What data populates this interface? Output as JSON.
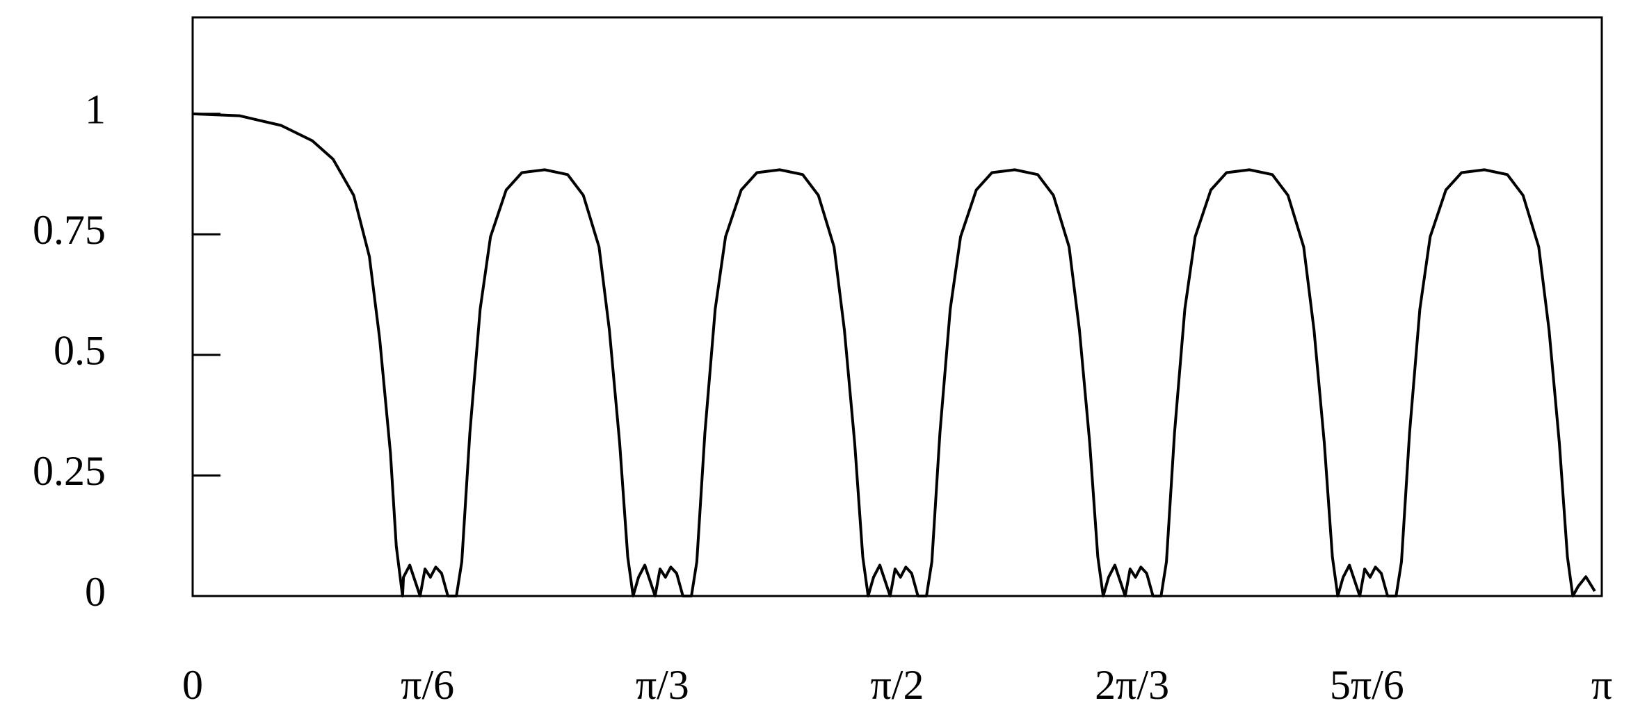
{
  "chart_data": {
    "type": "line",
    "color": "#000000",
    "xlim": [
      0,
      3.1416
    ],
    "ylim": [
      0,
      1.2
    ],
    "xticks": [
      0,
      {
        "value": 0.5236,
        "label": "π/6"
      },
      {
        "value": 1.0472,
        "label": "π/3"
      },
      {
        "value": 1.5708,
        "label": "π/2"
      },
      {
        "value": 2.0944,
        "label": "2π/3"
      },
      {
        "value": 2.618,
        "label": "5π/6"
      },
      {
        "value": 3.1416,
        "label": "π"
      }
    ],
    "yticks": [
      0,
      0.25,
      0.5,
      0.75,
      1
    ],
    "x": [
      0,
      0.104,
      0.197,
      0.267,
      0.313,
      0.359,
      0.394,
      0.417,
      0.441,
      0.454,
      0.468,
      0.47,
      0.484,
      0.497,
      0.507,
      0.518,
      0.53,
      0.542,
      0.555,
      0.569,
      0.588,
      0.6,
      0.618,
      0.641,
      0.664,
      0.699,
      0.734,
      0.785,
      0.836,
      0.871,
      0.906,
      0.929,
      0.952,
      0.97,
      0.982,
      0.994,
      1.008,
      1.021,
      1.031,
      1.042,
      1.054,
      1.066,
      1.079,
      1.093,
      1.112,
      1.124,
      1.142,
      1.165,
      1.188,
      1.223,
      1.258,
      1.309,
      1.36,
      1.395,
      1.43,
      1.453,
      1.476,
      1.494,
      1.506,
      1.518,
      1.532,
      1.545,
      1.555,
      1.566,
      1.578,
      1.59,
      1.603,
      1.617,
      1.636,
      1.648,
      1.666,
      1.689,
      1.712,
      1.747,
      1.782,
      1.833,
      1.884,
      1.919,
      1.954,
      1.977,
      2.0,
      2.018,
      2.03,
      2.042,
      2.056,
      2.069,
      2.079,
      2.09,
      2.102,
      2.114,
      2.127,
      2.141,
      2.159,
      2.171,
      2.189,
      2.212,
      2.235,
      2.27,
      2.305,
      2.356,
      2.407,
      2.442,
      2.477,
      2.5,
      2.523,
      2.541,
      2.553,
      2.565,
      2.579,
      2.592,
      2.602,
      2.613,
      2.625,
      2.637,
      2.65,
      2.664,
      2.683,
      2.695,
      2.713,
      2.736,
      2.759,
      2.794,
      2.829,
      2.88,
      2.931,
      2.966,
      3.001,
      3.024,
      3.047,
      3.065,
      3.077,
      3.089,
      3.106,
      3.126
    ],
    "values": [
      1,
      0.996,
      0.976,
      0.944,
      0.906,
      0.831,
      0.704,
      0.533,
      0.296,
      0.103,
      0,
      0.039,
      0.064,
      0.028,
      0,
      0.056,
      0.039,
      0.06,
      0.047,
      0,
      0,
      0.071,
      0.338,
      0.595,
      0.745,
      0.842,
      0.878,
      0.884,
      0.874,
      0.831,
      0.724,
      0.552,
      0.317,
      0.081,
      0,
      0.039,
      0.064,
      0.028,
      0,
      0.056,
      0.039,
      0.06,
      0.047,
      0,
      0,
      0.071,
      0.338,
      0.595,
      0.745,
      0.842,
      0.878,
      0.884,
      0.874,
      0.831,
      0.724,
      0.552,
      0.317,
      0.081,
      0,
      0.039,
      0.064,
      0.028,
      0,
      0.056,
      0.039,
      0.06,
      0.047,
      0,
      0,
      0.071,
      0.338,
      0.595,
      0.745,
      0.842,
      0.878,
      0.884,
      0.874,
      0.831,
      0.724,
      0.552,
      0.317,
      0.081,
      0,
      0.039,
      0.064,
      0.028,
      0,
      0.056,
      0.039,
      0.06,
      0.047,
      0,
      0,
      0.071,
      0.338,
      0.595,
      0.745,
      0.842,
      0.878,
      0.884,
      0.874,
      0.831,
      0.724,
      0.552,
      0.317,
      0.081,
      0,
      0.039,
      0.064,
      0.028,
      0,
      0.056,
      0.039,
      0.06,
      0.047,
      0,
      0,
      0.071,
      0.338,
      0.595,
      0.745,
      0.842,
      0.878,
      0.884,
      0.874,
      0.831,
      0.724,
      0.552,
      0.317,
      0.081,
      0,
      0.02,
      0.04,
      0.01
    ]
  }
}
